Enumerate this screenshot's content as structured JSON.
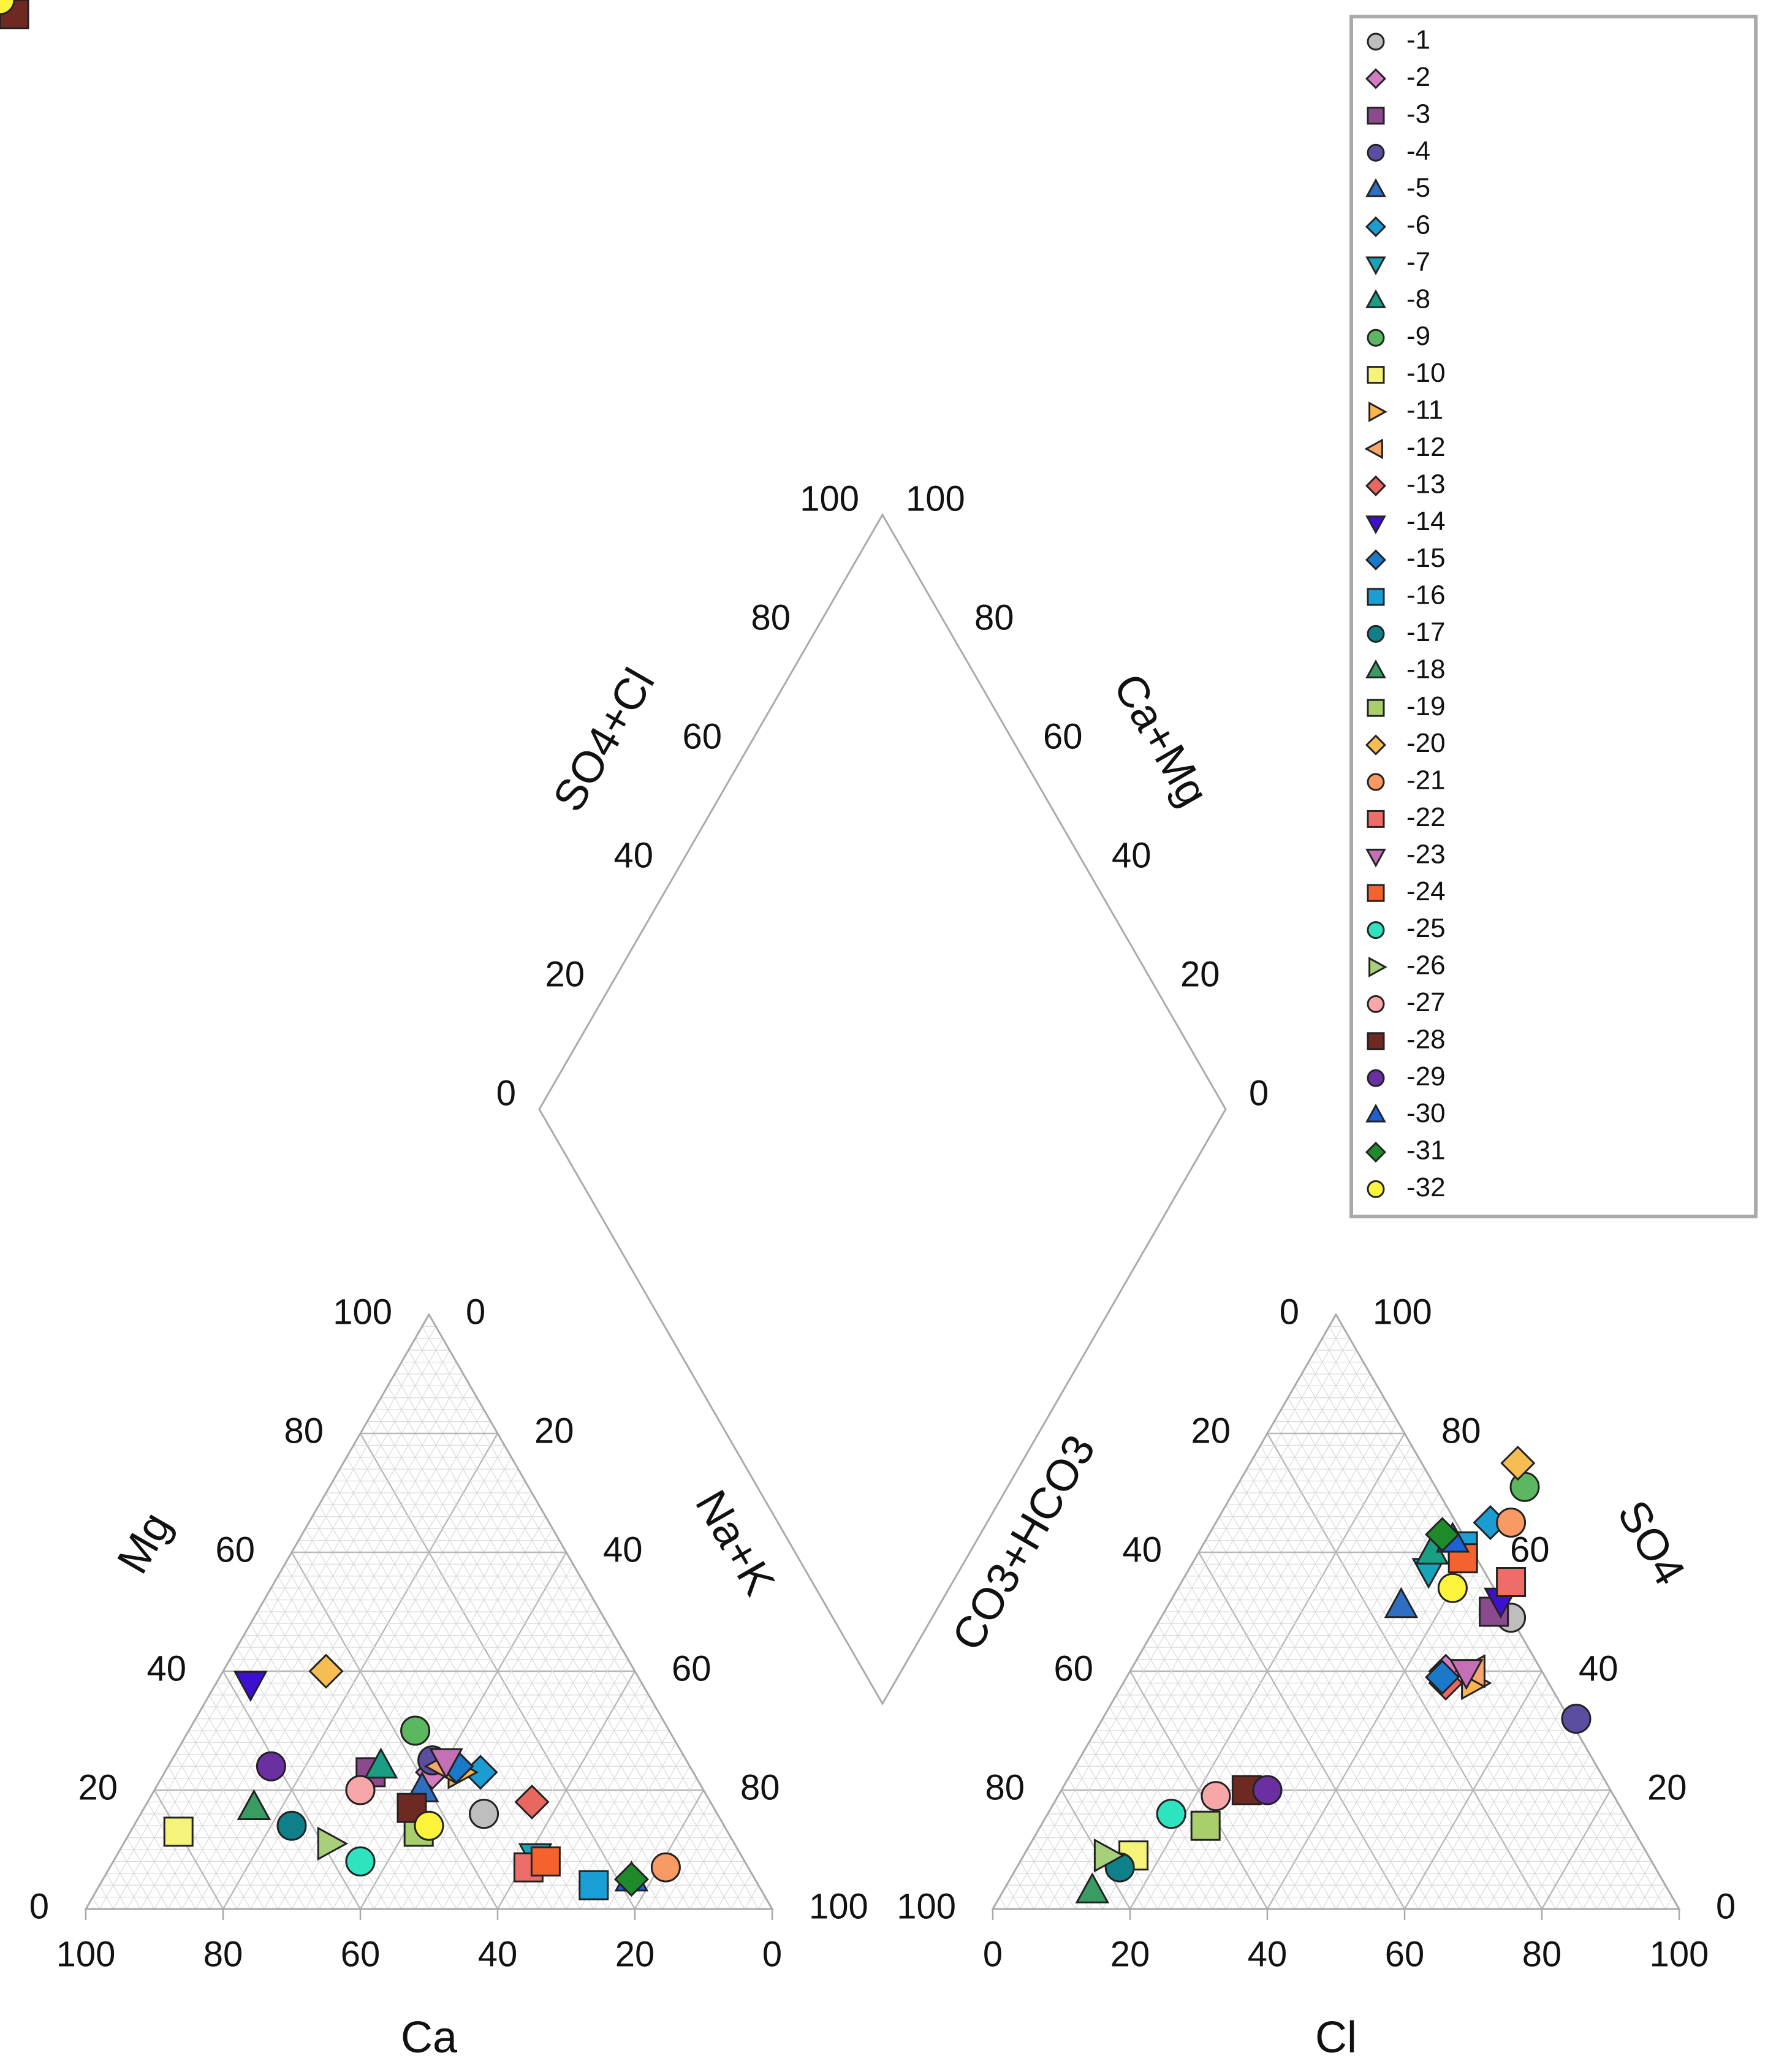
{
  "chart_data": {
    "type": "scatter",
    "subtype": "piper-diagram",
    "grid": true,
    "legend_position": "top-right",
    "cation_triangle": {
      "bottom_axis": {
        "label": "Ca",
        "ticks": [
          "100",
          "80",
          "60",
          "40",
          "20",
          "0"
        ]
      },
      "left_axis": {
        "label": "Mg",
        "ticks": [
          "100",
          "80",
          "60",
          "40",
          "20",
          "0"
        ]
      },
      "right_axis": {
        "label": "Na+K",
        "ticks": [
          "0",
          "20",
          "40",
          "60",
          "80",
          "100"
        ]
      }
    },
    "anion_triangle": {
      "bottom_axis": {
        "label": "Cl",
        "ticks": [
          "0",
          "20",
          "40",
          "60",
          "80",
          "100"
        ]
      },
      "left_axis": {
        "label": "CO3+HCO3",
        "ticks": [
          "0",
          "20",
          "40",
          "60",
          "80",
          "100"
        ]
      },
      "right_axis": {
        "label": "SO4",
        "ticks": [
          "100",
          "80",
          "60",
          "40",
          "20",
          "0"
        ]
      }
    },
    "diamond": {
      "left_axis": {
        "label": "SO4+Cl",
        "ticks": [
          "100",
          "80",
          "60",
          "40",
          "20",
          "0"
        ]
      },
      "right_axis": {
        "label": "Ca+Mg",
        "ticks": [
          "100",
          "80",
          "60",
          "40",
          "20",
          "0"
        ]
      }
    },
    "series": [
      {
        "name": "-1",
        "marker": "circle",
        "color": "#BEBEBE",
        "cation": {
          "Ca": 34,
          "Mg": 16
        },
        "anion": {
          "Cl": 51,
          "SO4": 49
        }
      },
      {
        "name": "-2",
        "marker": "diamond",
        "color": "#D57BC2",
        "cation": {
          "Ca": 38,
          "Mg": 23
        },
        "anion": {
          "Cl": 46,
          "SO4": 40
        }
      },
      {
        "name": "-3",
        "marker": "square",
        "color": "#8B4A8E",
        "cation": {
          "Ca": 47,
          "Mg": 23
        },
        "anion": {
          "Cl": 48,
          "SO4": 50
        }
      },
      {
        "name": "-4",
        "marker": "circle",
        "color": "#5B4EA0",
        "cation": {
          "Ca": 37,
          "Mg": 25
        },
        "anion": {
          "Cl": 69,
          "SO4": 32
        }
      },
      {
        "name": "-5",
        "marker": "triangle-up",
        "color": "#2F6FC2",
        "cation": {
          "Ca": 41,
          "Mg": 20
        },
        "anion": {
          "Cl": 34,
          "SO4": 51
        }
      },
      {
        "name": "-6",
        "marker": "diamond",
        "color": "#1B9CD3",
        "cation": {
          "Ca": 31,
          "Mg": 23
        },
        "anion": {
          "Cl": 40,
          "SO4": 65
        }
      },
      {
        "name": "-7",
        "marker": "triangle-down",
        "color": "#14A5B8",
        "cation": {
          "Ca": 30,
          "Mg": 9
        },
        "anion": {
          "Cl": 35,
          "SO4": 57
        }
      },
      {
        "name": "-8",
        "marker": "triangle-up",
        "color": "#1A9E84",
        "cation": {
          "Ca": 45,
          "Mg": 24
        },
        "anion": {
          "Cl": 34,
          "SO4": 60
        }
      },
      {
        "name": "-9",
        "marker": "circle",
        "color": "#5CB860",
        "cation": {
          "Ca": 37,
          "Mg": 30
        },
        "anion": {
          "Cl": 42,
          "SO4": 71
        }
      },
      {
        "name": "-10",
        "marker": "square",
        "color": "#F5F37A",
        "cation": {
          "Ca": 80,
          "Mg": 13
        },
        "anion": {
          "Cl": 16,
          "SO4": 9
        }
      },
      {
        "name": "-11",
        "marker": "triangle-right",
        "color": "#FDB44B",
        "cation": {
          "Ca": 34,
          "Mg": 23
        },
        "anion": {
          "Cl": 51,
          "SO4": 38
        }
      },
      {
        "name": "-12",
        "marker": "triangle-left",
        "color": "#F8A66A",
        "cation": {
          "Ca": 36,
          "Mg": 24
        },
        "anion": {
          "Cl": 50,
          "SO4": 40
        }
      },
      {
        "name": "-13",
        "marker": "diamond",
        "color": "#E8675E",
        "cation": {
          "Ca": 26,
          "Mg": 18
        },
        "anion": {
          "Cl": 47,
          "SO4": 38
        }
      },
      {
        "name": "-14",
        "marker": "triangle-down",
        "color": "#3D0FD1",
        "cation": {
          "Ca": 57,
          "Mg": 38
        },
        "anion": {
          "Cl": 48,
          "SO4": 52
        }
      },
      {
        "name": "-15",
        "marker": "diamond",
        "color": "#1B79C9",
        "cation": {
          "Ca": 34,
          "Mg": 24
        },
        "anion": {
          "Cl": 46,
          "SO4": 39
        }
      },
      {
        "name": "-16",
        "marker": "square",
        "color": "#1A9FD4",
        "cation": {
          "Ca": 24,
          "Mg": 4
        },
        "anion": {
          "Cl": 38,
          "SO4": 61
        }
      },
      {
        "name": "-17",
        "marker": "circle",
        "color": "#0F7F8A",
        "cation": {
          "Ca": 63,
          "Mg": 14
        },
        "anion": {
          "Cl": 15,
          "SO4": 7
        }
      },
      {
        "name": "-18",
        "marker": "triangle-up",
        "color": "#3A9C62",
        "cation": {
          "Ca": 67,
          "Mg": 17
        },
        "anion": {
          "Cl": 13,
          "SO4": 3
        }
      },
      {
        "name": "-19",
        "marker": "square",
        "color": "#A8CF6C",
        "cation": {
          "Ca": 45,
          "Mg": 13
        },
        "anion": {
          "Cl": 24,
          "SO4": 14
        }
      },
      {
        "name": "-20",
        "marker": "diamond",
        "color": "#F6BE52",
        "cation": {
          "Ca": 45,
          "Mg": 40
        },
        "anion": {
          "Cl": 39,
          "SO4": 75
        }
      },
      {
        "name": "-21",
        "marker": "circle",
        "color": "#F79A63",
        "cation": {
          "Ca": 12,
          "Mg": 7
        },
        "anion": {
          "Cl": 43,
          "SO4": 65
        }
      },
      {
        "name": "-22",
        "marker": "square",
        "color": "#EE6D68",
        "cation": {
          "Ca": 32,
          "Mg": 7
        },
        "anion": {
          "Cl": 48,
          "SO4": 55
        }
      },
      {
        "name": "-23",
        "marker": "triangle-down",
        "color": "#C56FB4",
        "cation": {
          "Ca": 35,
          "Mg": 25
        },
        "anion": {
          "Cl": 49,
          "SO4": 40
        }
      },
      {
        "name": "-24",
        "marker": "square",
        "color": "#F5622E",
        "cation": {
          "Ca": 29,
          "Mg": 8
        },
        "anion": {
          "Cl": 39,
          "SO4": 59
        }
      },
      {
        "name": "-25",
        "marker": "circle",
        "color": "#2EE3C0",
        "cation": {
          "Ca": 56,
          "Mg": 8
        },
        "anion": {
          "Cl": 18,
          "SO4": 16
        }
      },
      {
        "name": "-26",
        "marker": "triangle-right",
        "color": "#A8D07A",
        "cation": {
          "Ca": 59,
          "Mg": 11
        },
        "anion": {
          "Cl": 12,
          "SO4": 9
        }
      },
      {
        "name": "-27",
        "marker": "circle",
        "color": "#F7A7A7",
        "cation": {
          "Ca": 50,
          "Mg": 20
        },
        "anion": {
          "Cl": 23,
          "SO4": 19
        }
      },
      {
        "name": "-28",
        "marker": "square",
        "color": "#6E2A22",
        "cation": {
          "Ca": 44,
          "Mg": 17
        },
        "anion": {
          "Cl": 27,
          "SO4": 20
        }
      },
      {
        "name": "-29",
        "marker": "circle",
        "color": "#6A2FA0",
        "cation": {
          "Ca": 61,
          "Mg": 24
        },
        "anion": {
          "Cl": 30,
          "SO4": 20
        }
      },
      {
        "name": "-30",
        "marker": "triangle-up",
        "color": "#1E60D6",
        "cation": {
          "Ca": 18,
          "Mg": 5
        },
        "anion": {
          "Cl": 36,
          "SO4": 62
        }
      },
      {
        "name": "-31",
        "marker": "diamond",
        "color": "#1F8A2A",
        "cation": {
          "Ca": 18,
          "Mg": 5
        },
        "anion": {
          "Cl": 34,
          "SO4": 63
        }
      },
      {
        "name": "-32",
        "marker": "circle",
        "color": "#FBF43A",
        "cation": {
          "Ca": 43,
          "Mg": 14
        },
        "anion": {
          "Cl": 40,
          "SO4": 54
        }
      }
    ]
  }
}
